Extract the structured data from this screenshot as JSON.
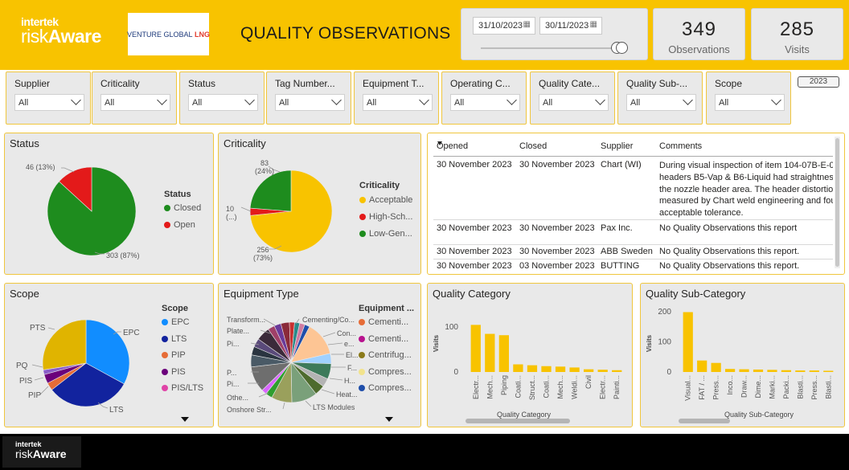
{
  "header": {
    "logo_top": "intertek",
    "logo_risk": "risk",
    "logo_aware": "Aware",
    "client_logo_a": "VENTURE GLOBAL",
    "client_logo_b": "LNG",
    "title": "QUALITY OBSERVATIONS",
    "date_from": "31/10/2023",
    "date_to": "30/11/2023",
    "slider_fraction": 1.0,
    "kpis": [
      {
        "value": "349",
        "label": "Observations"
      },
      {
        "value": "285",
        "label": "Visits"
      }
    ]
  },
  "slicers": [
    {
      "title": "Supplier",
      "value": "All"
    },
    {
      "title": "Criticality",
      "value": "All"
    },
    {
      "title": "Status",
      "value": "All"
    },
    {
      "title": "Tag Number...",
      "value": "All"
    },
    {
      "title": "Equipment T...",
      "value": "All"
    },
    {
      "title": "Operating C...",
      "value": "All"
    },
    {
      "title": "Quality Cate...",
      "value": "All"
    },
    {
      "title": "Quality Sub-...",
      "value": "All"
    },
    {
      "title": "Scope",
      "value": "All"
    }
  ],
  "year_button": "2023",
  "status_chart": {
    "title": "Status",
    "legend_title": "Status",
    "slices": [
      {
        "name": "Closed",
        "value": 303,
        "label": "303 (87%)",
        "color": "#1e8c1e"
      },
      {
        "name": "Open",
        "value": 46,
        "label": "46 (13%)",
        "color": "#e31a1a"
      }
    ]
  },
  "criticality_chart": {
    "title": "Criticality",
    "legend_title": "Criticality",
    "slices": [
      {
        "name": "Acceptable",
        "value": 256,
        "label_a": "256",
        "label_b": "(73%)",
        "color": "#f8c300"
      },
      {
        "name": "High-Sch...",
        "value": 10,
        "label_a": "10",
        "label_b": "(...)",
        "color": "#e31a1a"
      },
      {
        "name": "Low-Gen...",
        "value": 83,
        "label_a": "83",
        "label_b": "(24%)",
        "color": "#1e8c1e"
      }
    ]
  },
  "table": {
    "headers": [
      "Opened",
      "Closed",
      "Supplier",
      "Comments"
    ],
    "rows": [
      {
        "opened": "30 November 2023",
        "closed": "30 November 2023",
        "supplier": "Chart (WI)",
        "comments": "During visual inspection of item 104-07B-E-0-headers B5-Vap & B6-Liquid had straightness the nozzle header area. The header distortion measured by Chart weld engineering and fou acceptable tolerance."
      },
      {
        "opened": "30 November 2023",
        "closed": "30 November 2023",
        "supplier": "Pax Inc.",
        "comments": "No Quality Observations this report"
      },
      {
        "opened": "30 November 2023",
        "closed": "30 November 2023",
        "supplier": "ABB Sweden",
        "comments": "No Quality Observations this report."
      },
      {
        "opened": "30 November 2023",
        "closed": "03 November 2023",
        "supplier": "BUTTING",
        "comments": "No Quality Observations this report."
      }
    ]
  },
  "scope_chart": {
    "title": "Scope",
    "legend_title": "Scope",
    "slices": [
      {
        "name": "EPC",
        "value": 115,
        "color": "#118dff"
      },
      {
        "name": "LTS",
        "value": 110,
        "color": "#12239e"
      },
      {
        "name": "PIP",
        "value": 10,
        "color": "#e66c37"
      },
      {
        "name": "PIS",
        "value": 12,
        "color": "#6b007b"
      },
      {
        "name": "PQ",
        "value": 6,
        "color": "#8a5cc8"
      },
      {
        "name": "PTS",
        "value": 96,
        "color": "#e0b400"
      }
    ],
    "legend": [
      {
        "name": "EPC",
        "color": "#118dff"
      },
      {
        "name": "LTS",
        "color": "#12239e"
      },
      {
        "name": "PIP",
        "color": "#e66c37"
      },
      {
        "name": "PIS",
        "color": "#6b007b"
      },
      {
        "name": "PIS/LTS",
        "color": "#e044a7"
      }
    ]
  },
  "equipment_chart": {
    "title": "Equipment Type",
    "legend_title": "Equipment ...",
    "slices": [
      {
        "name": "Cementing/Co...",
        "value": 6,
        "color": "#1f4eaa"
      },
      {
        "name": "Con...",
        "value": 40,
        "color": "#fdc594"
      },
      {
        "name": "e...",
        "value": 12,
        "color": "#a0d1ff"
      },
      {
        "name": "El...",
        "value": 18,
        "color": "#3d7a5a"
      },
      {
        "name": "F...",
        "value": 10,
        "color": "#b3b3b3"
      },
      {
        "name": "H...",
        "value": 12,
        "color": "#4e6b2d"
      },
      {
        "name": "Heat...",
        "value": 30,
        "color": "#7aa07a"
      },
      {
        "name": "LTS Modules",
        "value": 24,
        "color": "#9aa05c"
      },
      {
        "name": "",
        "value": 8,
        "color": "#2f9e2f"
      },
      {
        "name": "",
        "value": 6,
        "color": "#d966ff"
      },
      {
        "name": "Onshore Str...",
        "value": 30,
        "color": "#6e6e6e"
      },
      {
        "name": "Othe...",
        "value": 14,
        "color": "#4a5a66"
      },
      {
        "name": "Pi...",
        "value": 10,
        "color": "#2a3440"
      },
      {
        "name": "P...",
        "value": 10,
        "color": "#5a4a7a"
      },
      {
        "name": "",
        "value": 16,
        "color": "#3b2a3a"
      },
      {
        "name": "Pi...",
        "value": 8,
        "color": "#a04068"
      },
      {
        "name": "Plate...",
        "value": 8,
        "color": "#6a3a9a"
      },
      {
        "name": "Transform...",
        "value": 10,
        "color": "#8a2a3a"
      },
      {
        "name": "",
        "value": 6,
        "color": "#c83030"
      },
      {
        "name": "",
        "value": 6,
        "color": "#2a8a8a"
      },
      {
        "name": "",
        "value": 6,
        "color": "#d07aa0"
      }
    ],
    "legend": [
      {
        "name": "Cementi...",
        "color": "#e66c37"
      },
      {
        "name": "Cementi...",
        "color": "#b8128e"
      },
      {
        "name": "Centrifug...",
        "color": "#8a7a1a"
      },
      {
        "name": "Compres...",
        "color": "#f2e38c"
      },
      {
        "name": "Compres...",
        "color": "#1f4eaa"
      }
    ]
  },
  "quality_category_chart": {
    "title": "Quality Category",
    "type": "bar",
    "ylabel": "Visits",
    "xlabel": "Quality Category",
    "ylim": [
      0,
      120
    ],
    "yticks": [
      0,
      100
    ],
    "categories": [
      "Electr...",
      "Mech...",
      "Piping",
      "Coati...",
      "Struct...",
      "Coati...",
      "Mech...",
      "Weldi...",
      "Civil",
      "Electr...",
      "Painti..."
    ],
    "values": [
      105,
      85,
      82,
      17,
      15,
      13,
      12,
      10,
      6,
      5,
      4
    ],
    "color": "#f8c300"
  },
  "quality_subcategory_chart": {
    "title": "Quality Sub-Category",
    "type": "bar",
    "ylabel": "Visits",
    "xlabel": "Quality Sub-Category",
    "ylim": [
      0,
      210
    ],
    "yticks": [
      0,
      100,
      200
    ],
    "categories": [
      "Visual...",
      "FAT / ...",
      "Press...",
      "Inco...",
      "Draw...",
      "Dime...",
      "Marki...",
      "Packi...",
      "Blasti...",
      "Press...",
      "Blasti..."
    ],
    "values": [
      198,
      38,
      30,
      10,
      9,
      8,
      7,
      6,
      5,
      5,
      4
    ],
    "color": "#f8c300"
  },
  "footer": {
    "logo_top": "intertek",
    "logo_risk": "risk",
    "logo_aware": "Aware"
  }
}
